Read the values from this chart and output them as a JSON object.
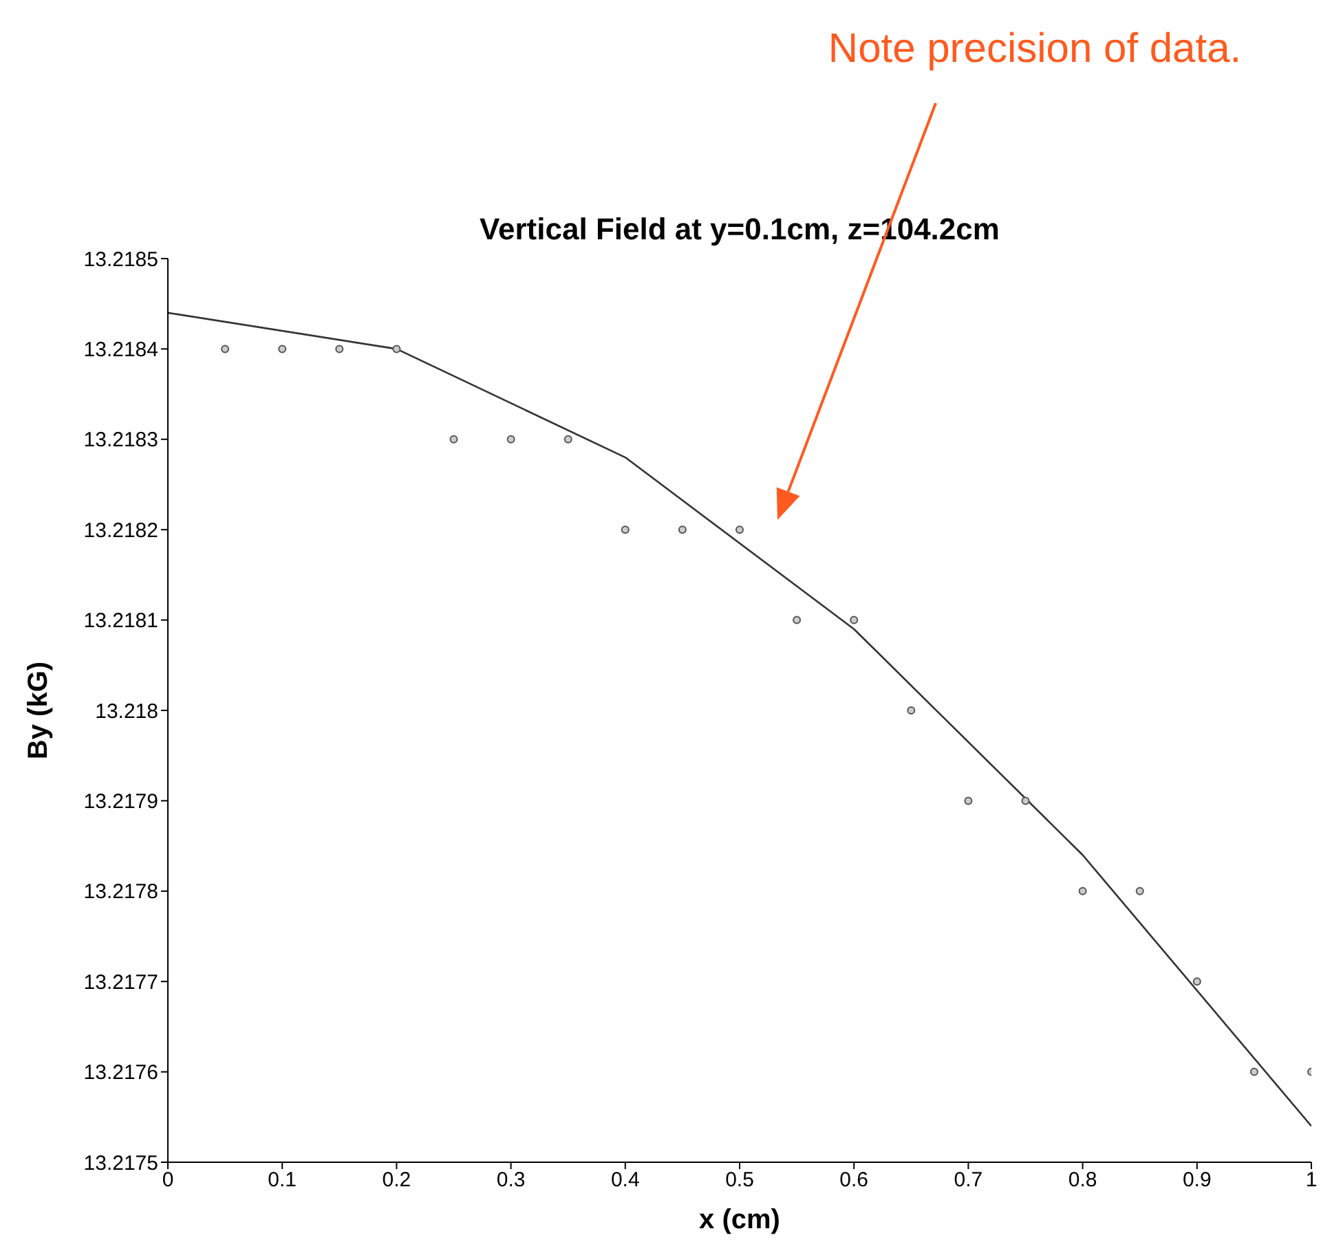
{
  "chart_data": {
    "type": "scatter",
    "title": "Vertical Field at y=0.1cm, z=104.2cm",
    "xlabel": "x (cm)",
    "ylabel": "By (kG)",
    "xlim": [
      0,
      1
    ],
    "xticks": [
      0,
      0.1,
      0.2,
      0.3,
      0.4,
      0.5,
      0.6,
      0.7,
      0.8,
      0.9,
      1
    ],
    "ylim": [
      13.2175,
      13.2185
    ],
    "yticks": [
      13.2175,
      13.2176,
      13.2177,
      13.2178,
      13.2179,
      13.218,
      13.2181,
      13.2182,
      13.2183,
      13.2184,
      13.2185
    ],
    "series": [
      {
        "color": "#555555",
        "x": [
          0.05,
          0.1,
          0.15,
          0.2,
          0.25,
          0.3,
          0.35,
          0.4,
          0.45,
          0.5,
          0.55,
          0.6,
          0.65,
          0.7,
          0.75,
          0.8,
          0.85,
          0.9,
          0.95,
          1
        ],
        "values": [
          13.2184,
          13.2184,
          13.2184,
          13.2184,
          13.2183,
          13.2183,
          13.2183,
          13.2182,
          13.2182,
          13.2182,
          13.2181,
          13.2181,
          13.218,
          13.2179,
          13.2179,
          13.2178,
          13.2178,
          13.2177,
          13.2176,
          13.2176
        ]
      },
      {
        "type": "line",
        "color": "#333333",
        "x": [
          0,
          0.2,
          0.4,
          0.6,
          0.8,
          1
        ],
        "values": [
          13.21844,
          13.2184,
          13.21828,
          13.21809,
          13.21784,
          13.21754
        ]
      }
    ],
    "annotations": [
      "Note precision of data."
    ]
  }
}
